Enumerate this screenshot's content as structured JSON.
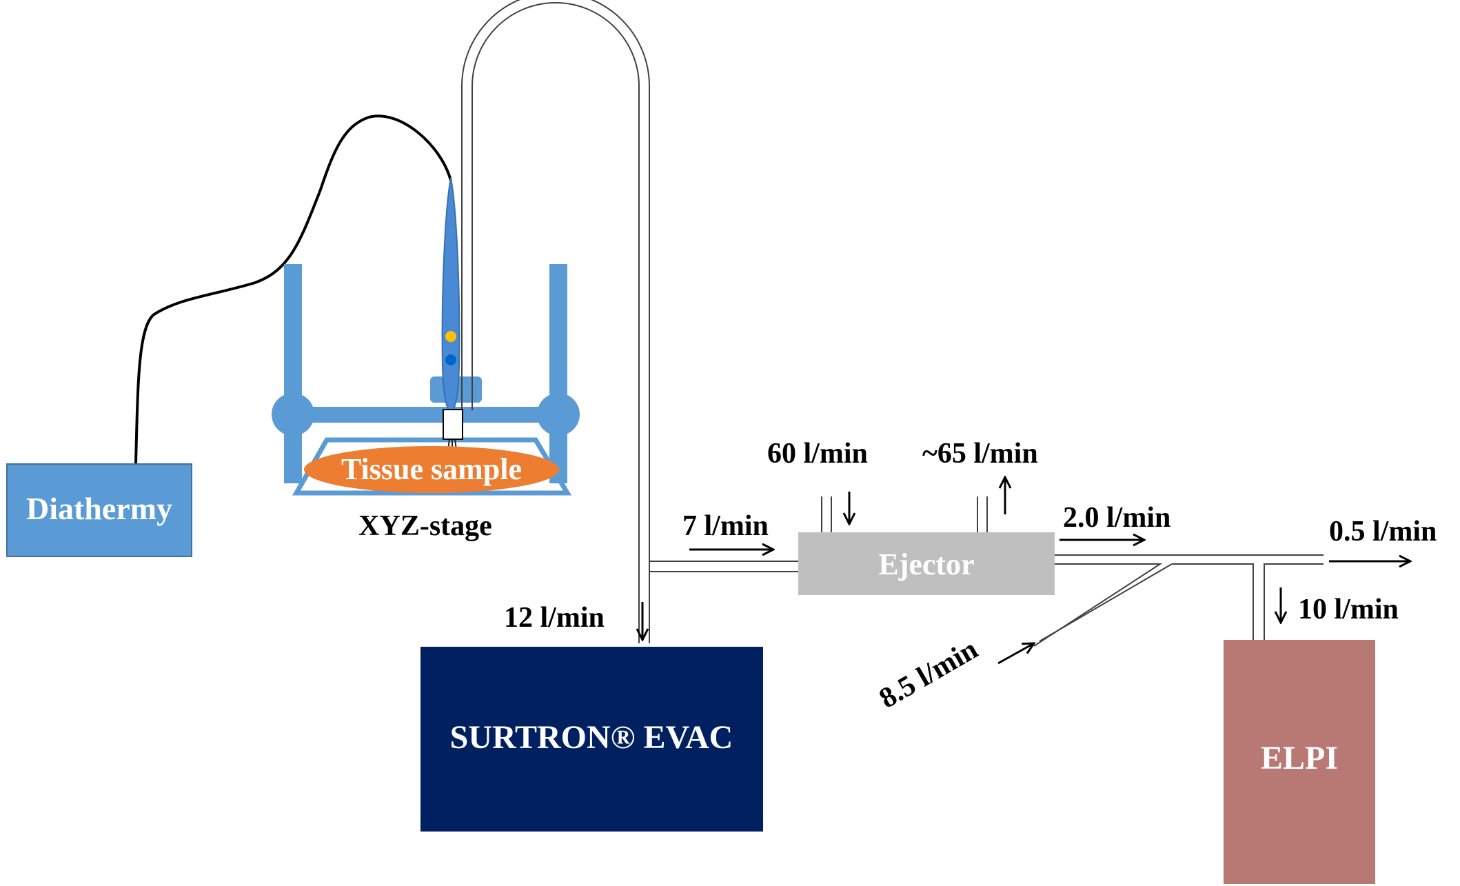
{
  "devices": {
    "diathermy": {
      "label": "Diathermy",
      "color": "#5b9bd5"
    },
    "surtron": {
      "label": "SURTRON® EVAC",
      "color": "#002060"
    },
    "ejector": {
      "label": "Ejector",
      "color": "#bfbfbf"
    },
    "elpi": {
      "label": "ELPI",
      "color": "#b87975"
    }
  },
  "stage": {
    "sample_label": "Tissue sample",
    "sample_color": "#ed7d31",
    "stage_label": "XYZ-stage",
    "frame_color": "#5b9bd5"
  },
  "flows": {
    "evac_inlet": "12 l/min",
    "ejector_inlet": "7 l/min",
    "dilution_air_in": "60 l/min",
    "ejector_exhaust": "~65 l/min",
    "ejector_outlet": "2.0 l/min",
    "makeup_air": "8.5 l/min",
    "excess_outlet": "0.5 l/min",
    "elpi_inlet": "10 l/min"
  }
}
